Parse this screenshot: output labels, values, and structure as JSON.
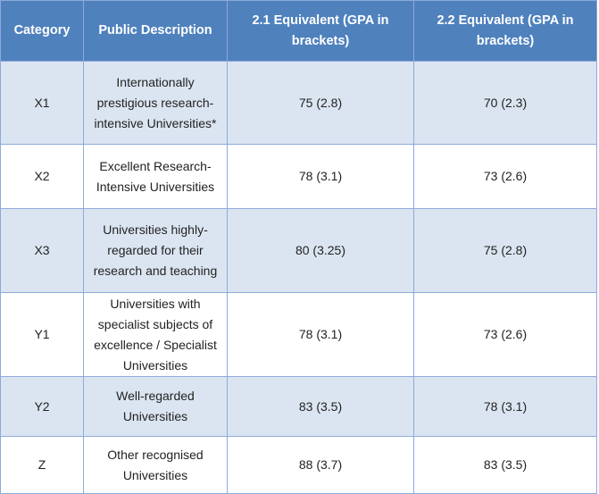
{
  "table": {
    "headers": {
      "category": "Category",
      "description": "Public Description",
      "equiv_21": "2.1 Equivalent (GPA in brackets)",
      "equiv_22": "2.2 Equivalent (GPA in brackets)"
    },
    "rows": [
      {
        "category": "X1",
        "description": "Internationally prestigious research-intensive Universities*",
        "equiv_21": "75 (2.8)",
        "equiv_22": "70 (2.3)"
      },
      {
        "category": "X2",
        "description": "Excellent Research-Intensive Universities",
        "equiv_21": "78 (3.1)",
        "equiv_22": "73 (2.6)"
      },
      {
        "category": "X3",
        "description": "Universities highly-regarded for their research and teaching",
        "equiv_21": "80 (3.25)",
        "equiv_22": "75 (2.8)"
      },
      {
        "category": "Y1",
        "description": "Universities with specialist subjects of excellence / Specialist Universities",
        "equiv_21": "78 (3.1)",
        "equiv_22": "73 (2.6)"
      },
      {
        "category": "Y2",
        "description": "Well-regarded Universities",
        "equiv_21": "83 (3.5)",
        "equiv_22": "78 (3.1)"
      },
      {
        "category": "Z",
        "description": "Other recognised Universities",
        "equiv_21": "88 (3.7)",
        "equiv_22": "83 (3.5)"
      }
    ]
  },
  "colors": {
    "header_bg": "#4f81bd",
    "header_text": "#ffffff",
    "row_band": "#dbe5f1",
    "border": "#8eaadb"
  }
}
